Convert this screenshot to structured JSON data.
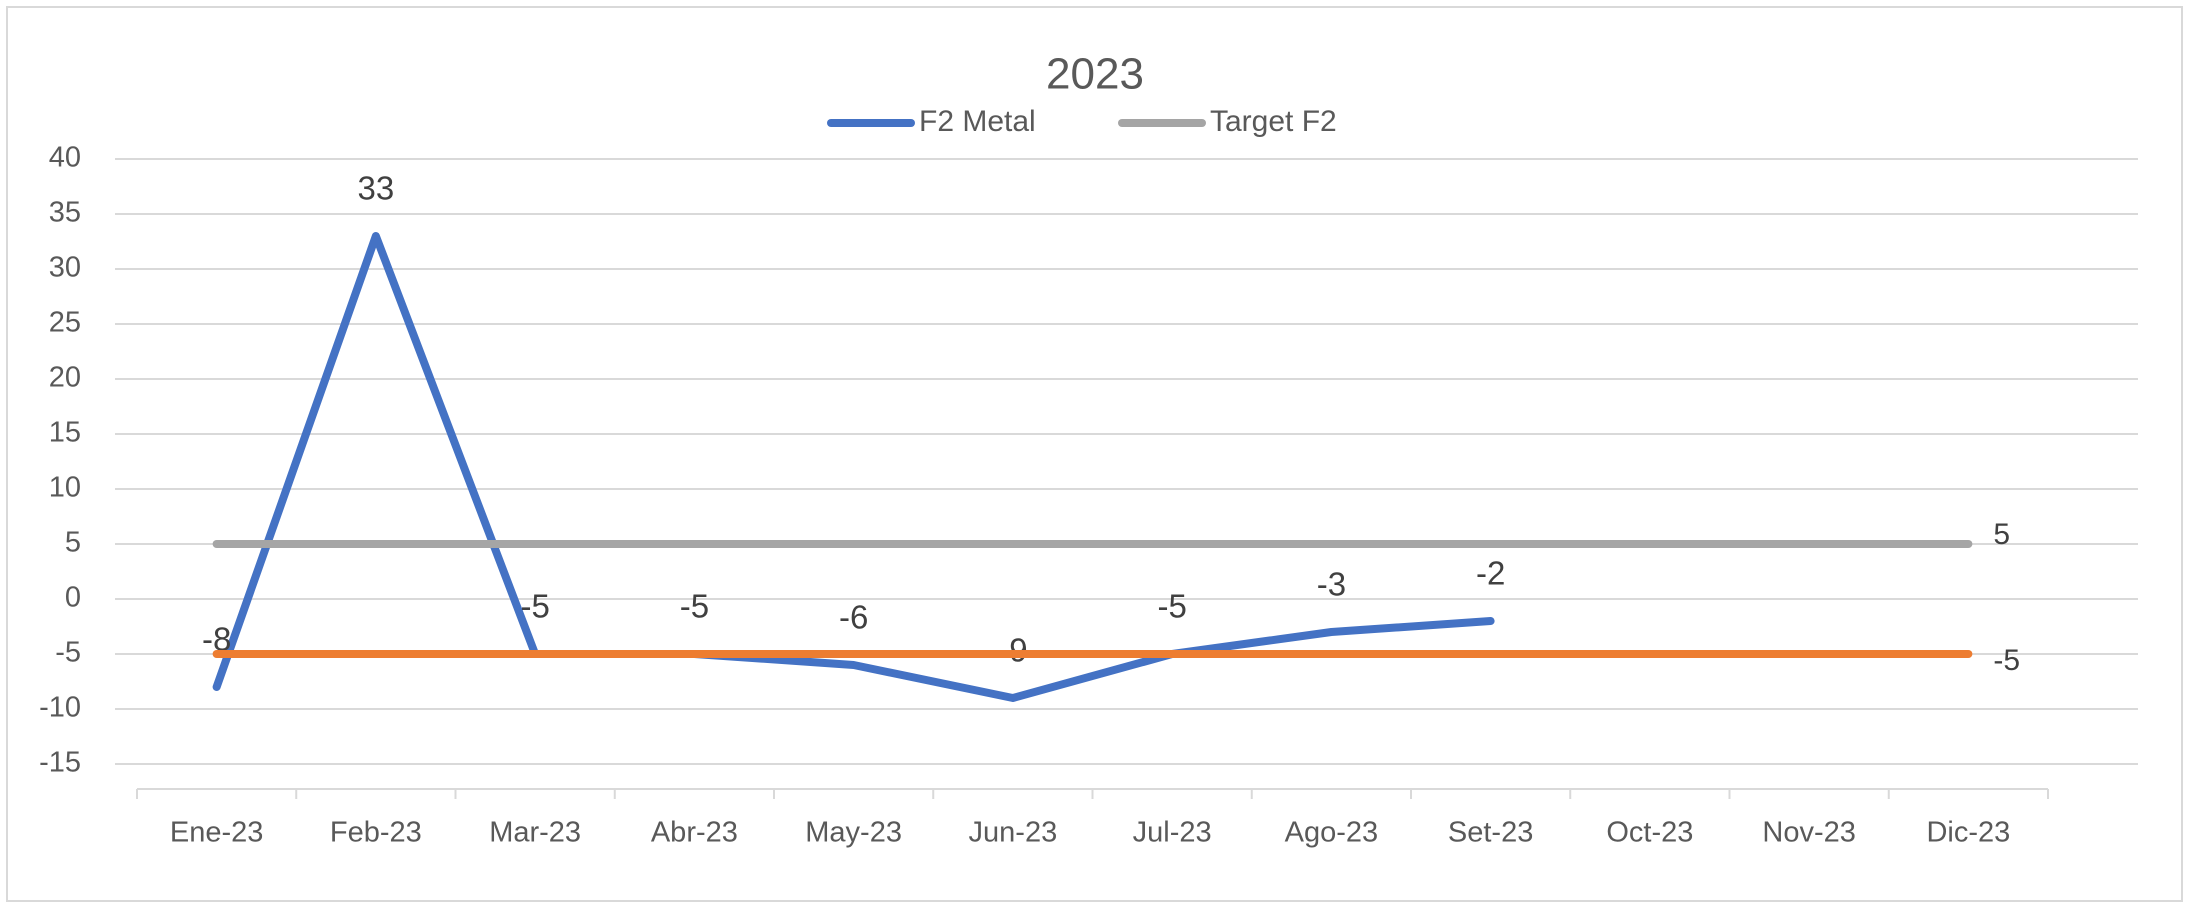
{
  "chart_data": {
    "type": "line",
    "title": "2023",
    "categories": [
      "Ene-23",
      "Feb-23",
      "Mar-23",
      "Abr-23",
      "May-23",
      "Jun-23",
      "Jul-23",
      "Ago-23",
      "Set-23",
      "Oct-23",
      "Nov-23",
      "Dic-23"
    ],
    "series": [
      {
        "name": "F2 Metal",
        "color": "#4472c4",
        "data_labels": "all",
        "values": [
          -8,
          33,
          -5,
          -5,
          -6,
          -9,
          -5,
          -3,
          -2,
          null,
          null,
          null
        ]
      },
      {
        "name": "Target F2",
        "color": "#a5a5a5",
        "data_labels": "last",
        "values": [
          5,
          5,
          5,
          5,
          5,
          5,
          5,
          5,
          5,
          5,
          5,
          5
        ]
      },
      {
        "color": "#ed7d31",
        "data_labels": "last",
        "values": [
          -5,
          -5,
          -5,
          -5,
          -5,
          -5,
          -5,
          -5,
          -5,
          -5,
          -5,
          -5
        ]
      }
    ],
    "ylim": [
      -15,
      40
    ],
    "yticks": [
      -15,
      -10,
      -5,
      0,
      5,
      10,
      15,
      20,
      25,
      30,
      35,
      40
    ],
    "grid": true,
    "legend": "top"
  }
}
